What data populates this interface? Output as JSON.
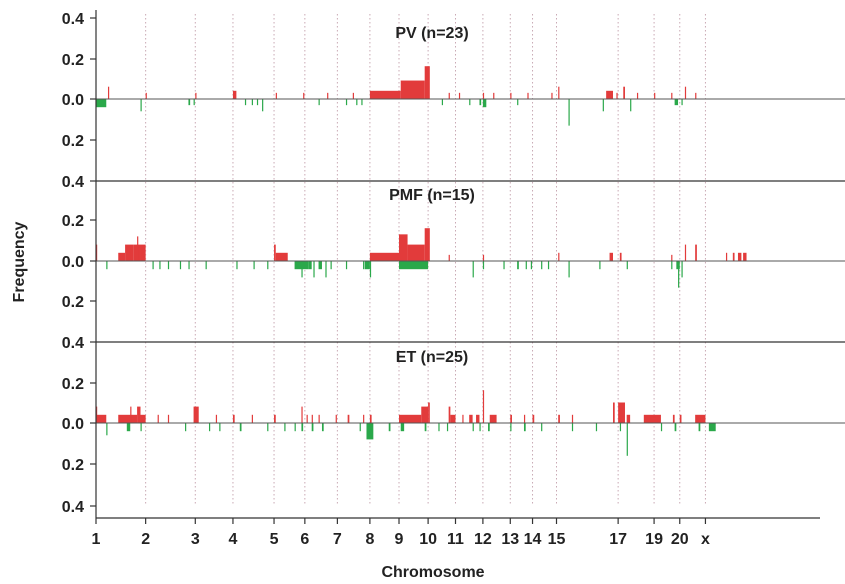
{
  "chart_data": {
    "type": "bar",
    "xlabel": "Chromosome",
    "ylabel": "Frequency",
    "y_tick_labels": [
      "0.4",
      "0.2",
      "0.0",
      "0.2",
      "0.4"
    ],
    "ylim": [
      -0.4,
      0.4
    ],
    "x_range": [
      1,
      22
    ],
    "chromosome_ticks": [
      {
        "label": "1",
        "pos": 1
      },
      {
        "label": "2",
        "pos": 2.45
      },
      {
        "label": "3",
        "pos": 3.9
      },
      {
        "label": "4",
        "pos": 5
      },
      {
        "label": "5",
        "pos": 6.2
      },
      {
        "label": "6",
        "pos": 7.1
      },
      {
        "label": "7",
        "pos": 8.05
      },
      {
        "label": "8",
        "pos": 9
      },
      {
        "label": "9",
        "pos": 9.85
      },
      {
        "label": "10",
        "pos": 10.7
      },
      {
        "label": "11",
        "pos": 11.5
      },
      {
        "label": "12",
        "pos": 12.3
      },
      {
        "label": "13",
        "pos": 13.1
      },
      {
        "label": "14",
        "pos": 13.75
      },
      {
        "label": "15",
        "pos": 14.45
      },
      {
        "label": "17",
        "pos": 16.25
      },
      {
        "label": "19",
        "pos": 17.3
      },
      {
        "label": "20",
        "pos": 18.05
      },
      {
        "label": "x",
        "pos": 18.8
      }
    ],
    "colors": {
      "gain": "#e23b3b",
      "loss": "#2aa84a",
      "divider": "#c9a9b4",
      "axis": "#333333"
    },
    "panels": [
      {
        "title": "PV (n=23)",
        "gains": [
          [
            1.35,
            1.38,
            0.06
          ],
          [
            2.45,
            2.48,
            0.03
          ],
          [
            3.9,
            3.93,
            0.03
          ],
          [
            5.0,
            5.1,
            0.04
          ],
          [
            6.25,
            6.28,
            0.03
          ],
          [
            7.05,
            7.08,
            0.03
          ],
          [
            7.75,
            7.78,
            0.03
          ],
          [
            8.5,
            8.53,
            0.03
          ],
          [
            9.0,
            9.9,
            0.04
          ],
          [
            9.9,
            10.6,
            0.09
          ],
          [
            10.6,
            10.75,
            0.16
          ],
          [
            11.3,
            11.33,
            0.03
          ],
          [
            11.6,
            11.63,
            0.03
          ],
          [
            12.3,
            12.33,
            0.03
          ],
          [
            12.6,
            12.63,
            0.03
          ],
          [
            13.1,
            13.13,
            0.03
          ],
          [
            13.6,
            13.63,
            0.03
          ],
          [
            14.3,
            14.33,
            0.03
          ],
          [
            14.5,
            14.53,
            0.06
          ],
          [
            15.9,
            16.1,
            0.04
          ],
          [
            16.2,
            16.23,
            0.03
          ],
          [
            16.4,
            16.45,
            0.06
          ],
          [
            16.8,
            16.83,
            0.03
          ],
          [
            17.3,
            17.33,
            0.03
          ],
          [
            17.8,
            17.83,
            0.03
          ],
          [
            18.2,
            18.23,
            0.06
          ],
          [
            18.5,
            18.53,
            0.03
          ]
        ],
        "losses": [
          [
            1.0,
            1.3,
            -0.04
          ],
          [
            2.3,
            2.33,
            -0.06
          ],
          [
            3.7,
            3.75,
            -0.03
          ],
          [
            3.85,
            3.88,
            -0.03
          ],
          [
            5.35,
            5.38,
            -0.03
          ],
          [
            5.55,
            5.58,
            -0.03
          ],
          [
            5.7,
            5.73,
            -0.03
          ],
          [
            5.85,
            5.88,
            -0.06
          ],
          [
            7.5,
            7.53,
            -0.03
          ],
          [
            8.3,
            8.33,
            -0.03
          ],
          [
            8.6,
            8.63,
            -0.03
          ],
          [
            8.75,
            8.78,
            -0.03
          ],
          [
            11.1,
            11.13,
            -0.03
          ],
          [
            11.9,
            11.93,
            -0.03
          ],
          [
            12.2,
            12.25,
            -0.03
          ],
          [
            12.3,
            12.4,
            -0.04
          ],
          [
            13.3,
            13.33,
            -0.03
          ],
          [
            14.8,
            14.83,
            -0.13
          ],
          [
            15.8,
            15.83,
            -0.06
          ],
          [
            16.6,
            16.63,
            -0.06
          ],
          [
            17.9,
            18.0,
            -0.03
          ],
          [
            18.1,
            18.13,
            -0.03
          ]
        ]
      },
      {
        "title": "PMF (n=15)",
        "gains": [
          [
            1.0,
            1.03,
            0.08
          ],
          [
            1.65,
            1.85,
            0.04
          ],
          [
            1.85,
            2.1,
            0.08
          ],
          [
            2.1,
            2.3,
            0.08
          ],
          [
            2.3,
            2.45,
            0.08
          ],
          [
            2.2,
            2.23,
            0.12
          ],
          [
            6.2,
            6.25,
            0.08
          ],
          [
            6.25,
            6.6,
            0.04
          ],
          [
            9.0,
            9.85,
            0.04
          ],
          [
            9.85,
            10.1,
            0.13
          ],
          [
            10.1,
            10.6,
            0.08
          ],
          [
            10.6,
            10.75,
            0.16
          ],
          [
            11.3,
            11.33,
            0.03
          ],
          [
            12.3,
            12.33,
            0.03
          ],
          [
            14.5,
            14.53,
            0.04
          ],
          [
            16.0,
            16.1,
            0.04
          ],
          [
            16.3,
            16.35,
            0.04
          ],
          [
            17.8,
            17.83,
            0.03
          ],
          [
            18.2,
            18.23,
            0.08
          ],
          [
            18.5,
            18.55,
            0.08
          ],
          [
            19.4,
            19.43,
            0.04
          ],
          [
            19.6,
            19.65,
            0.04
          ],
          [
            19.75,
            19.85,
            0.04
          ],
          [
            19.9,
            20.0,
            0.04
          ]
        ],
        "losses": [
          [
            1.3,
            1.33,
            -0.04
          ],
          [
            2.65,
            2.68,
            -0.04
          ],
          [
            2.85,
            2.88,
            -0.04
          ],
          [
            3.1,
            3.13,
            -0.04
          ],
          [
            3.45,
            3.48,
            -0.04
          ],
          [
            3.7,
            3.73,
            -0.04
          ],
          [
            4.2,
            4.23,
            -0.04
          ],
          [
            5.1,
            5.13,
            -0.04
          ],
          [
            5.6,
            5.63,
            -0.04
          ],
          [
            6.0,
            6.03,
            -0.04
          ],
          [
            6.8,
            7.2,
            -0.04
          ],
          [
            7.0,
            7.03,
            -0.08
          ],
          [
            7.2,
            7.3,
            -0.04
          ],
          [
            7.35,
            7.38,
            -0.08
          ],
          [
            7.5,
            7.6,
            -0.04
          ],
          [
            7.7,
            7.73,
            -0.08
          ],
          [
            7.85,
            7.88,
            -0.04
          ],
          [
            8.3,
            8.33,
            -0.04
          ],
          [
            8.8,
            8.83,
            -0.04
          ],
          [
            8.85,
            9.0,
            -0.04
          ],
          [
            9.0,
            9.03,
            -0.08
          ],
          [
            9.85,
            10.7,
            -0.04
          ],
          [
            12.0,
            12.03,
            -0.08
          ],
          [
            12.3,
            12.33,
            -0.04
          ],
          [
            12.9,
            12.93,
            -0.04
          ],
          [
            13.3,
            13.35,
            -0.04
          ],
          [
            13.55,
            13.58,
            -0.04
          ],
          [
            13.7,
            13.73,
            -0.04
          ],
          [
            14.0,
            14.03,
            -0.04
          ],
          [
            14.2,
            14.23,
            -0.04
          ],
          [
            14.8,
            14.83,
            -0.08
          ],
          [
            15.7,
            15.73,
            -0.04
          ],
          [
            16.5,
            16.53,
            -0.04
          ],
          [
            17.8,
            17.83,
            -0.04
          ],
          [
            17.95,
            18.05,
            -0.04
          ],
          [
            18.0,
            18.03,
            -0.13
          ],
          [
            18.1,
            18.13,
            -0.08
          ]
        ]
      },
      {
        "title": "ET (n=25)",
        "gains": [
          [
            1.0,
            1.02,
            0.08
          ],
          [
            1.02,
            1.3,
            0.04
          ],
          [
            1.65,
            2.2,
            0.04
          ],
          [
            2.2,
            2.3,
            0.08
          ],
          [
            2.3,
            2.45,
            0.04
          ],
          [
            2.0,
            2.03,
            0.08
          ],
          [
            2.8,
            2.83,
            0.04
          ],
          [
            3.1,
            3.13,
            0.04
          ],
          [
            3.85,
            4.0,
            0.08
          ],
          [
            4.5,
            4.53,
            0.04
          ],
          [
            5.0,
            5.05,
            0.04
          ],
          [
            5.55,
            5.58,
            0.04
          ],
          [
            6.2,
            6.25,
            0.04
          ],
          [
            7.0,
            7.03,
            0.08
          ],
          [
            7.15,
            7.18,
            0.04
          ],
          [
            7.3,
            7.33,
            0.04
          ],
          [
            7.5,
            7.53,
            0.04
          ],
          [
            8.0,
            8.03,
            0.04
          ],
          [
            8.35,
            8.4,
            0.04
          ],
          [
            8.8,
            8.83,
            0.04
          ],
          [
            9.0,
            9.05,
            0.04
          ],
          [
            9.85,
            10.5,
            0.04
          ],
          [
            10.5,
            10.7,
            0.08
          ],
          [
            10.7,
            10.75,
            0.1
          ],
          [
            11.3,
            11.35,
            0.08
          ],
          [
            11.35,
            11.5,
            0.04
          ],
          [
            11.7,
            11.73,
            0.04
          ],
          [
            11.9,
            12.0,
            0.04
          ],
          [
            12.3,
            12.33,
            0.16
          ],
          [
            12.1,
            12.2,
            0.04
          ],
          [
            12.5,
            12.7,
            0.04
          ],
          [
            13.1,
            13.15,
            0.04
          ],
          [
            13.5,
            13.53,
            0.04
          ],
          [
            13.75,
            13.8,
            0.04
          ],
          [
            14.5,
            14.55,
            0.04
          ],
          [
            14.9,
            14.93,
            0.04
          ],
          [
            16.1,
            16.15,
            0.1
          ],
          [
            16.25,
            16.45,
            0.1
          ],
          [
            16.5,
            16.6,
            0.04
          ],
          [
            17.0,
            17.5,
            0.04
          ],
          [
            17.85,
            17.9,
            0.04
          ],
          [
            18.05,
            18.1,
            0.04
          ],
          [
            18.5,
            18.8,
            0.04
          ]
        ],
        "losses": [
          [
            1.3,
            1.33,
            -0.06
          ],
          [
            1.9,
            2.0,
            -0.04
          ],
          [
            2.3,
            2.33,
            -0.04
          ],
          [
            3.6,
            3.63,
            -0.04
          ],
          [
            4.3,
            4.33,
            -0.04
          ],
          [
            4.6,
            4.63,
            -0.04
          ],
          [
            5.2,
            5.25,
            -0.04
          ],
          [
            6.0,
            6.03,
            -0.04
          ],
          [
            6.5,
            6.53,
            -0.04
          ],
          [
            6.8,
            6.83,
            -0.04
          ],
          [
            7.0,
            7.05,
            -0.04
          ],
          [
            7.3,
            7.35,
            -0.04
          ],
          [
            7.6,
            7.65,
            -0.04
          ],
          [
            8.7,
            8.73,
            -0.04
          ],
          [
            9.0,
            9.05,
            -0.04
          ],
          [
            8.9,
            9.1,
            -0.08
          ],
          [
            9.55,
            9.6,
            -0.04
          ],
          [
            9.9,
            10.0,
            -0.04
          ],
          [
            10.6,
            10.65,
            -0.04
          ],
          [
            11.0,
            11.03,
            -0.04
          ],
          [
            11.25,
            11.28,
            -0.04
          ],
          [
            12.0,
            12.03,
            -0.04
          ],
          [
            12.2,
            12.23,
            -0.04
          ],
          [
            12.45,
            12.5,
            -0.04
          ],
          [
            13.1,
            13.13,
            -0.04
          ],
          [
            13.5,
            13.55,
            -0.04
          ],
          [
            14.0,
            14.03,
            -0.04
          ],
          [
            14.9,
            14.93,
            -0.04
          ],
          [
            15.6,
            15.63,
            -0.04
          ],
          [
            16.3,
            16.33,
            -0.04
          ],
          [
            16.5,
            16.53,
            -0.16
          ],
          [
            17.5,
            17.53,
            -0.04
          ],
          [
            17.9,
            17.95,
            -0.04
          ],
          [
            18.6,
            18.65,
            -0.04
          ],
          [
            18.9,
            19.1,
            -0.04
          ]
        ]
      }
    ]
  }
}
